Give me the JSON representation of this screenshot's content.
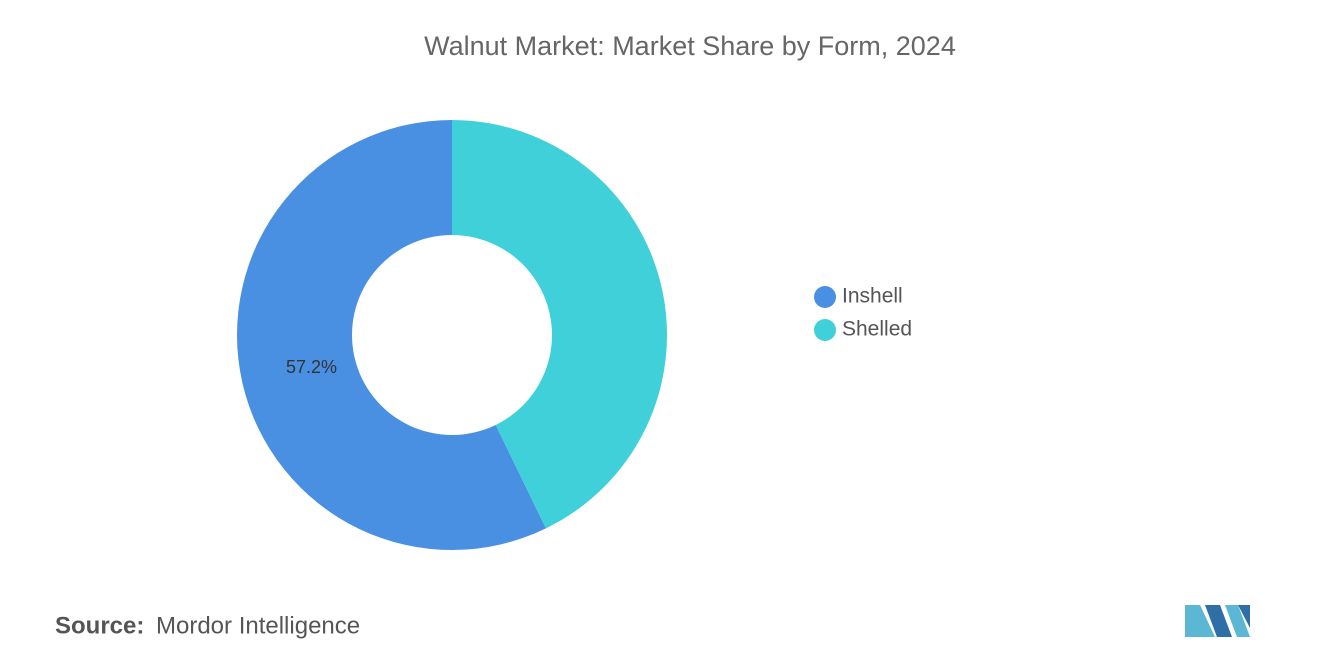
{
  "chart_data": {
    "type": "donut",
    "title": "Walnut Market: Market Share by Form, 2024",
    "categories": [
      "Inshell",
      "Shelled"
    ],
    "values": [
      57.2,
      42.8
    ],
    "value_labels": [
      "57.2%",
      null
    ],
    "colors": [
      "#4a90e2",
      "#40d0da"
    ],
    "source_label": "Source:",
    "source": "Mordor Intelligence"
  }
}
